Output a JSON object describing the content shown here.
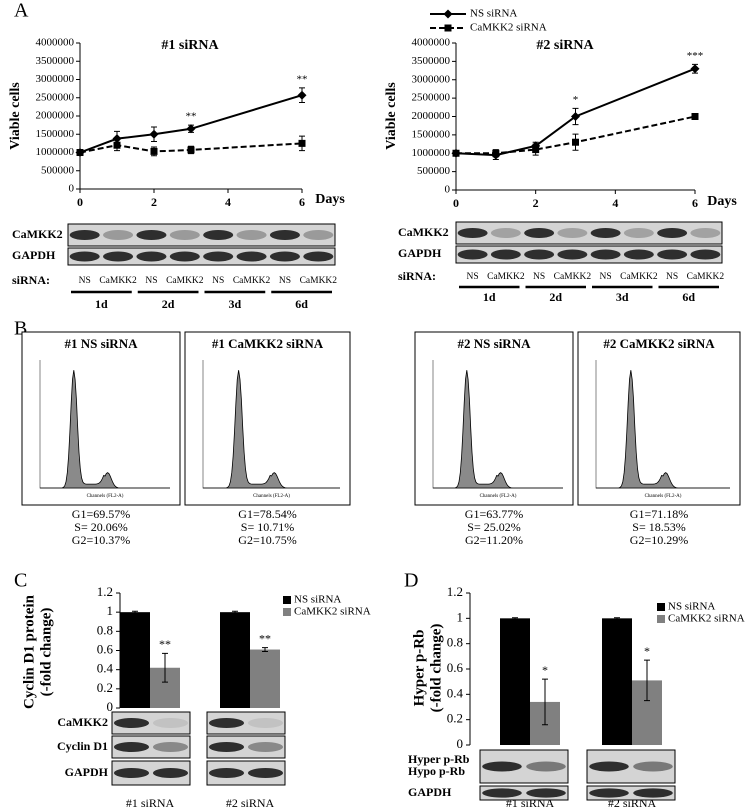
{
  "panel_labels": [
    "A",
    "B",
    "C",
    "D"
  ],
  "chart_data": [
    {
      "type": "line",
      "title": "#1 siRNA",
      "ylabel": [
        "Viable cells"
      ],
      "xlabel": "Days",
      "x": [
        0,
        1,
        2,
        3,
        6
      ],
      "xlim": [
        0,
        6
      ],
      "xticks": [
        0,
        2,
        4,
        6
      ],
      "ylim": [
        0,
        4000000
      ],
      "yticks": [
        0,
        500000,
        1000000,
        1500000,
        2000000,
        2500000,
        3000000,
        3500000,
        4000000
      ],
      "series": [
        {
          "color": "#000000",
          "marker": "diamond",
          "line_style": "solid",
          "values": [
            1000000,
            1380000,
            1500000,
            1650000,
            2570000
          ],
          "errors": [
            30000,
            200000,
            200000,
            100000,
            200000
          ]
        },
        {
          "color": "#000000",
          "marker": "square",
          "line_style": "dashed",
          "values": [
            1000000,
            1200000,
            1030000,
            1070000,
            1250000
          ],
          "errors": [
            50000,
            150000,
            120000,
            100000,
            200000
          ]
        }
      ],
      "annotations": [
        {
          "text": "**",
          "x": 3
        },
        {
          "text": "**",
          "x": 6
        }
      ]
    },
    {
      "type": "line",
      "title": "#2 siRNA",
      "ylabel": [
        "Viable cells"
      ],
      "xlabel": "Days",
      "legend": "top-right",
      "x": [
        0,
        1,
        2,
        3,
        6
      ],
      "xlim": [
        0,
        6
      ],
      "xticks": [
        0,
        2,
        4,
        6
      ],
      "ylim": [
        0,
        4000000
      ],
      "yticks": [
        0,
        500000,
        1000000,
        1500000,
        2000000,
        2500000,
        3000000,
        3500000,
        4000000
      ],
      "series": [
        {
          "name": "NS siRNA",
          "color": "#000000",
          "marker": "diamond",
          "line_style": "solid",
          "values": [
            1000000,
            950000,
            1200000,
            2000000,
            3300000
          ],
          "errors": [
            50000,
            120000,
            100000,
            220000,
            120000
          ]
        },
        {
          "name": "CaMKK2 siRNA",
          "color": "#000000",
          "marker": "square",
          "line_style": "dashed",
          "values": [
            1000000,
            1000000,
            1100000,
            1300000,
            2000000
          ],
          "errors": [
            50000,
            100000,
            150000,
            220000,
            30000
          ]
        }
      ],
      "annotations": [
        {
          "text": "*",
          "x": 3
        },
        {
          "text": "***",
          "x": 6
        }
      ]
    },
    {
      "type": "bar",
      "ylabel": [
        "Cyclin D1 protein",
        "(-fold change)"
      ],
      "legend": "right",
      "categories": [
        "#1 siRNA",
        "#2 siRNA"
      ],
      "ylim": [
        0,
        1.2
      ],
      "yticks": [
        0,
        0.2,
        0.4,
        0.6,
        0.8,
        1,
        1.2
      ],
      "series": [
        {
          "name": "NS siRNA",
          "color": "#000000",
          "values": [
            1,
            1
          ],
          "errors": [
            0.01,
            0.01
          ]
        },
        {
          "name": "CaMKK2 siRNA",
          "color": "#808080",
          "values": [
            0.42,
            0.61
          ],
          "errors": [
            0.15,
            0.02
          ]
        }
      ],
      "annotations": [
        "**",
        "**"
      ]
    },
    {
      "type": "bar",
      "ylabel": [
        "Hyper p-Rb",
        "(-fold change)"
      ],
      "legend": "right",
      "categories": [
        "#1 siRNA",
        "#2 siRNA"
      ],
      "ylim": [
        0,
        1.2
      ],
      "yticks": [
        0,
        0.2,
        0.4,
        0.6,
        0.8,
        1,
        1.2
      ],
      "series": [
        {
          "name": "NS siRNA",
          "color": "#000000",
          "values": [
            1,
            1
          ],
          "errors": [
            0.005,
            0.005
          ]
        },
        {
          "name": "CaMKK2 siRNA",
          "color": "#808080",
          "values": [
            0.34,
            0.51
          ],
          "errors": [
            0.18,
            0.16
          ]
        }
      ],
      "annotations": [
        "*",
        "*"
      ]
    }
  ],
  "blots": [
    {
      "rows": [
        "CaMKK2",
        "GAPDH"
      ],
      "lane_header": "siRNA:",
      "lanes": [
        "NS",
        "CaMKK2",
        "NS",
        "CaMKK2",
        "NS",
        "CaMKK2",
        "NS",
        "CaMKK2"
      ],
      "groups": [
        "1d",
        "2d",
        "3d",
        "6d"
      ]
    },
    {
      "rows": [
        "CaMKK2",
        "GAPDH"
      ],
      "lane_header": "siRNA:",
      "lanes": [
        "NS",
        "CaMKK2",
        "NS",
        "CaMKK2",
        "NS",
        "CaMKK2",
        "NS",
        "CaMKK2"
      ],
      "groups": [
        "1d",
        "2d",
        "3d",
        "6d"
      ]
    },
    {
      "rows": [
        "CaMKK2",
        "Cyclin D1",
        "GAPDH"
      ]
    },
    {
      "rows": [
        "Hyper p-Rb",
        "Hypo p-Rb",
        "GAPDH"
      ]
    }
  ],
  "flow": [
    {
      "title": "#1 NS siRNA",
      "xlabel": "Channels (FL2-A)",
      "stats": [
        "G1=69.57%",
        "S= 20.06%",
        "G2=10.37%"
      ]
    },
    {
      "title": "#1 CaMKK2 siRNA",
      "xlabel": "Channels (FL2-A)",
      "stats": [
        "G1=78.54%",
        "S= 10.71%",
        "G2=10.75%"
      ]
    },
    {
      "title": "#2 NS siRNA",
      "xlabel": "Channels (FL2-A)",
      "stats": [
        "G1=63.77%",
        "S= 25.02%",
        "G2=11.20%"
      ]
    },
    {
      "title": "#2 CaMKK2 siRNA",
      "xlabel": "Channels (FL2-A)",
      "stats": [
        "G1=71.18%",
        "S= 18.53%",
        "G2=10.29%"
      ]
    }
  ]
}
